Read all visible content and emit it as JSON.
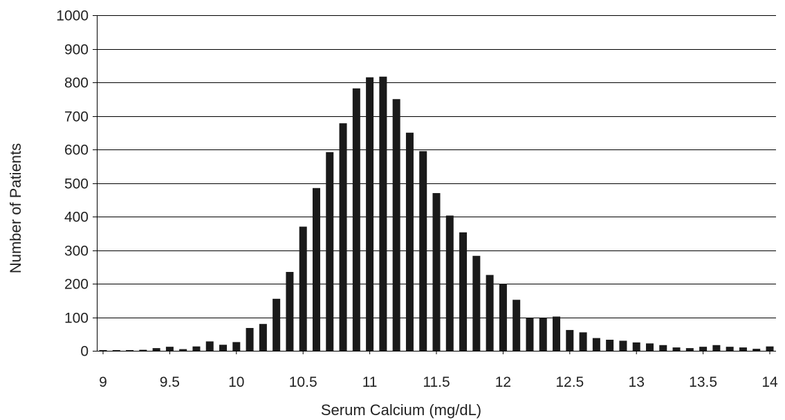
{
  "chart_data": {
    "type": "bar",
    "title": "",
    "xlabel": "Serum Calcium (mg/dL)",
    "ylabel": "Number of Patients",
    "ylim": [
      0,
      1000
    ],
    "yticks": [
      0,
      100,
      200,
      300,
      400,
      500,
      600,
      700,
      800,
      900,
      1000
    ],
    "xlim": [
      9,
      14
    ],
    "xticks": [
      "9",
      "9.5",
      "10",
      "10.5",
      "11",
      "11.5",
      "12",
      "12.5",
      "13",
      "13.5",
      "14"
    ],
    "grid": "horizontal",
    "legend": "none",
    "bar_color": "#1a1a1a",
    "x": [
      9.0,
      9.1,
      9.2,
      9.3,
      9.4,
      9.5,
      9.6,
      9.7,
      9.8,
      9.9,
      10.0,
      10.1,
      10.2,
      10.3,
      10.4,
      10.5,
      10.6,
      10.7,
      10.8,
      10.9,
      11.0,
      11.1,
      11.2,
      11.3,
      11.4,
      11.5,
      11.6,
      11.7,
      11.8,
      11.9,
      12.0,
      12.1,
      12.2,
      12.3,
      12.4,
      12.5,
      12.6,
      12.7,
      12.8,
      12.9,
      13.0,
      13.1,
      13.2,
      13.3,
      13.4,
      13.5,
      13.6,
      13.7,
      13.8,
      13.9,
      14.0
    ],
    "values": [
      2,
      2,
      2,
      3,
      8,
      12,
      5,
      13,
      28,
      18,
      26,
      68,
      80,
      155,
      235,
      370,
      485,
      592,
      678,
      782,
      815,
      817,
      750,
      650,
      595,
      470,
      403,
      353,
      283,
      226,
      200,
      152,
      98,
      98,
      102,
      62,
      55,
      38,
      33,
      30,
      25,
      22,
      17,
      10,
      8,
      12,
      17,
      12,
      10,
      6,
      13
    ]
  }
}
